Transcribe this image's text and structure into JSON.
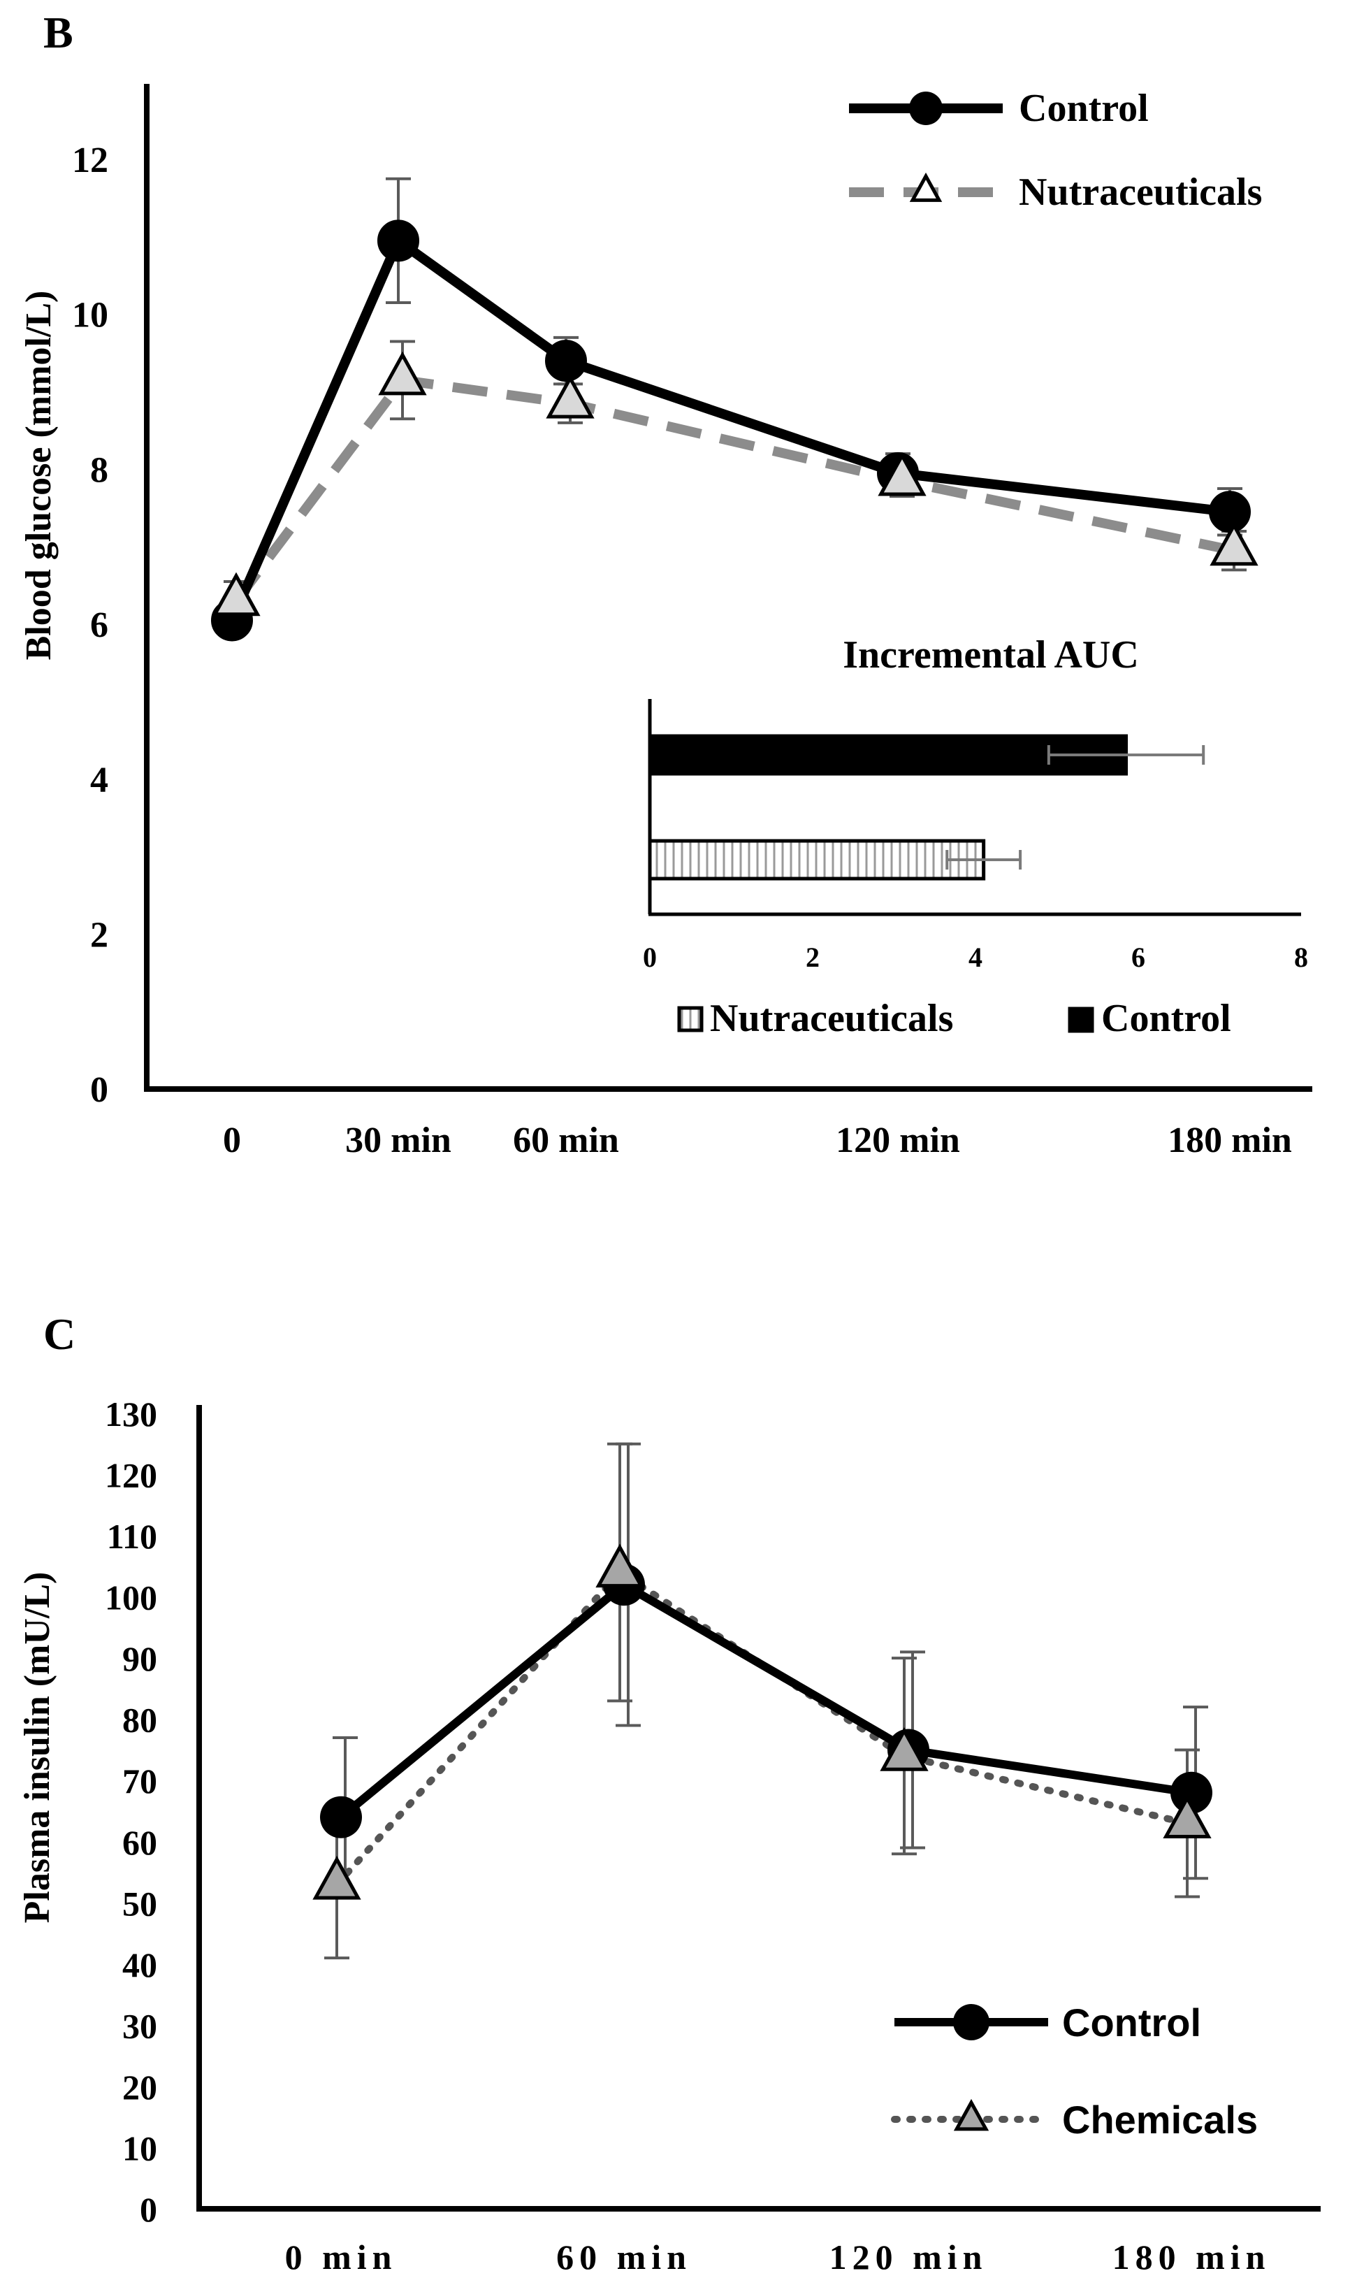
{
  "panels": {
    "b_letter": "B",
    "c_letter": "C"
  },
  "chart_data": [
    {
      "type": "line",
      "panel": "B",
      "title": "",
      "xlabel": "",
      "ylabel": "Blood glucose (mmol/L)",
      "x_ticks": [
        "0",
        "30 min",
        "60 min",
        "120 min",
        "180 min"
      ],
      "x_values": [
        0,
        30,
        60,
        120,
        180
      ],
      "ylim": [
        0,
        12
      ],
      "y_ticks": [
        0,
        2,
        4,
        6,
        8,
        10,
        12
      ],
      "grid": false,
      "legend_position": "top-right",
      "series": [
        {
          "name": "Control",
          "values": [
            6.05,
            10.95,
            9.4,
            7.95,
            7.45
          ],
          "error": [
            0.2,
            0.8,
            0.3,
            0.25,
            0.3
          ],
          "style": "solid",
          "marker": "circle",
          "color": "#000000"
        },
        {
          "name": "Nutraceuticals",
          "values": [
            6.3,
            9.15,
            8.85,
            7.85,
            6.95
          ],
          "error": [
            0.25,
            0.5,
            0.25,
            0.2,
            0.25
          ],
          "style": "dashed",
          "marker": "triangle",
          "color": "#8c8c8c"
        }
      ]
    },
    {
      "type": "bar",
      "panel": "B-inset",
      "orientation": "horizontal",
      "title": "Incremental AUC",
      "xlim": [
        0,
        8
      ],
      "x_ticks": [
        0,
        2,
        4,
        6,
        8
      ],
      "legend_position": "bottom",
      "series": [
        {
          "name": "Control",
          "value": 5.85,
          "error": 0.95,
          "fill": "solid-black"
        },
        {
          "name": "Nutraceuticals",
          "value": 4.1,
          "error": 0.45,
          "fill": "vertical-hatch"
        }
      ],
      "legend": [
        "Nutraceuticals",
        "Control"
      ]
    },
    {
      "type": "line",
      "panel": "C",
      "title": "",
      "xlabel": "",
      "ylabel": "Plasma insulin (mU/L)",
      "x_ticks": [
        "0 min",
        "60 min",
        "120 min",
        "180 min"
      ],
      "ylim": [
        0,
        130
      ],
      "y_ticks": [
        0,
        10,
        20,
        30,
        40,
        50,
        60,
        70,
        80,
        90,
        100,
        110,
        120,
        130
      ],
      "grid": false,
      "legend_position": "bottom-right",
      "series": [
        {
          "name": "Control",
          "values": [
            64,
            102,
            75,
            68
          ],
          "error": [
            13,
            23,
            16,
            14
          ],
          "style": "solid",
          "marker": "circle",
          "color": "#000000"
        },
        {
          "name": "Chemicals",
          "values": [
            53,
            104,
            74,
            63
          ],
          "error": [
            12,
            21,
            16,
            12
          ],
          "style": "dotted",
          "marker": "triangle",
          "color": "#555555"
        }
      ]
    }
  ]
}
